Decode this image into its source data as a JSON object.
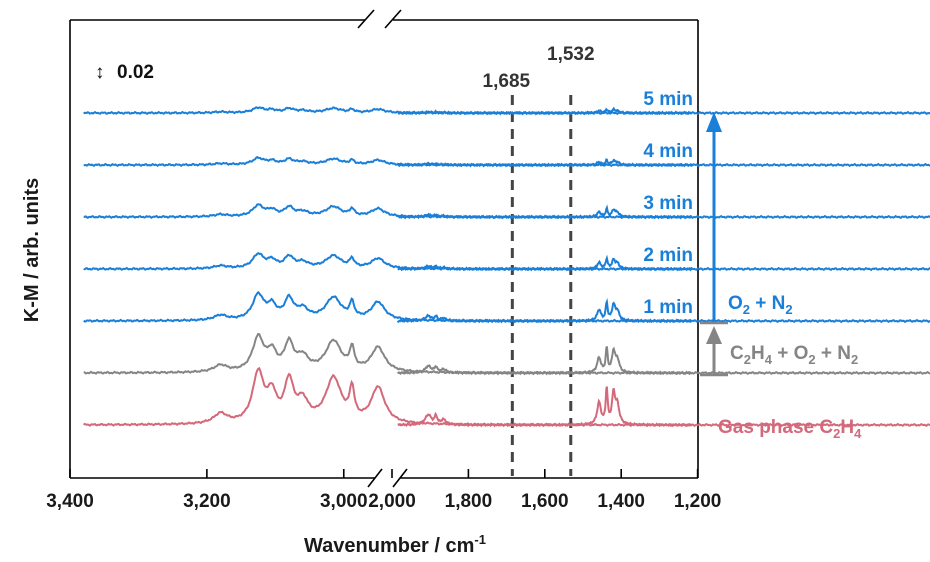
{
  "chart_data": {
    "type": "line",
    "xlabel": "Wavenumber / cm",
    "xlabel_superscript": "-1",
    "ylabel": "K-M / arb. units",
    "x_reversed": true,
    "x_break": [
      2060,
      2000
    ],
    "segments": [
      {
        "xlim": [
          3400,
          2060
        ],
        "ticks": [
          "3,400",
          "3,200",
          "3,000"
        ],
        "tick_values": [
          3400,
          3200,
          3000
        ]
      },
      {
        "xlim": [
          2000,
          1200
        ],
        "ticks": [
          "2,000",
          "1,800",
          "1,600",
          "1,400",
          "1,200"
        ],
        "tick_values": [
          2000,
          1800,
          1600,
          1400,
          1200
        ]
      }
    ],
    "scale_bar": {
      "value": "0.02",
      "arrow": "↕"
    },
    "reference_lines": [
      {
        "x": 1685,
        "label": "1,685",
        "style": "dashed"
      },
      {
        "x": 1532,
        "label": "1,532",
        "style": "dashed"
      }
    ],
    "colors": {
      "blue": "#1a7fd8",
      "gray": "#858585",
      "red": "#d4697b",
      "axis": "#000000"
    },
    "series": [
      {
        "name": "Gas phase C2H4",
        "offset": 0.0,
        "amplitude": 1.0,
        "color": "#d4697b"
      },
      {
        "name": "C2H4 + O2 + N2",
        "offset": 0.052,
        "amplitude": 0.68,
        "color": "#858585"
      },
      {
        "name": "1 min",
        "offset": 0.104,
        "amplitude": 0.5,
        "color": "#1a7fd8"
      },
      {
        "name": "2 min",
        "offset": 0.156,
        "amplitude": 0.28,
        "color": "#1a7fd8"
      },
      {
        "name": "3 min",
        "offset": 0.208,
        "amplitude": 0.22,
        "color": "#1a7fd8"
      },
      {
        "name": "4 min",
        "offset": 0.26,
        "amplitude": 0.13,
        "color": "#1a7fd8"
      },
      {
        "name": "5 min",
        "offset": 0.312,
        "amplitude": 0.1,
        "color": "#1a7fd8"
      }
    ],
    "peaks": [
      {
        "x": 3180,
        "h": 0.01,
        "w": 12
      },
      {
        "x": 3125,
        "h": 0.05,
        "w": 10
      },
      {
        "x": 3105,
        "h": 0.026,
        "w": 8
      },
      {
        "x": 3080,
        "h": 0.04,
        "w": 8
      },
      {
        "x": 3060,
        "h": 0.02,
        "w": 10
      },
      {
        "x": 3015,
        "h": 0.045,
        "w": 14
      },
      {
        "x": 2988,
        "h": 0.03,
        "w": 4
      },
      {
        "x": 2950,
        "h": 0.036,
        "w": 12
      },
      {
        "x": 1905,
        "h": 0.01,
        "w": 10
      },
      {
        "x": 1885,
        "h": 0.008,
        "w": 4
      },
      {
        "x": 1865,
        "h": 0.005,
        "w": 8
      },
      {
        "x": 1458,
        "h": 0.022,
        "w": 6
      },
      {
        "x": 1438,
        "h": 0.035,
        "w": 3
      },
      {
        "x": 1420,
        "h": 0.03,
        "w": 5
      },
      {
        "x": 1410,
        "h": 0.018,
        "w": 6
      }
    ],
    "annotations": {
      "times": [
        "5 min",
        "4 min",
        "3 min",
        "2 min",
        "1 min"
      ],
      "o2n2": {
        "base": "O",
        "sub1": "2",
        "mid": " + N",
        "sub2": "2"
      },
      "c2h4o2n2": [
        "C",
        "2",
        "H",
        "4",
        " + O",
        "2",
        " + N",
        "2"
      ],
      "gas": [
        "Gas phase C",
        "2",
        "H",
        "4"
      ]
    }
  }
}
